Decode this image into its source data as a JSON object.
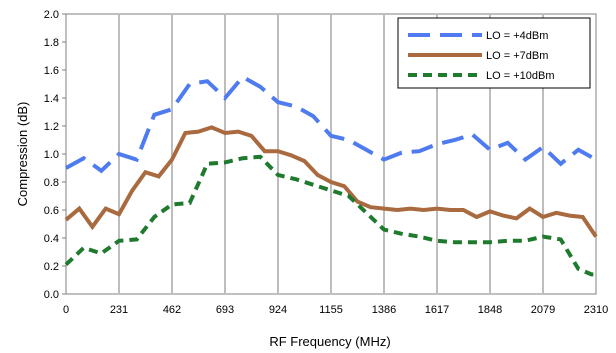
{
  "chart_data": {
    "type": "line",
    "xlabel": "RF Frequency (MHz)",
    "ylabel": "Compression (dB)",
    "xlim": [
      0,
      2310
    ],
    "ylim": [
      0,
      2.0
    ],
    "x_ticks": [
      "0",
      "231",
      "462",
      "693",
      "924",
      "1155",
      "1386",
      "1617",
      "1848",
      "2079",
      "2310"
    ],
    "y_ticks": [
      "0.0",
      "0.2",
      "0.4",
      "0.6",
      "0.8",
      "1.0",
      "1.2",
      "1.4",
      "1.6",
      "1.8",
      "2.0"
    ],
    "grid": "vertical",
    "legend_position": "top-right",
    "x": [
      0,
      77,
      154,
      231,
      308,
      385,
      462,
      539,
      616,
      693,
      770,
      847,
      924,
      1001,
      1078,
      1155,
      1232,
      1309,
      1386,
      1463,
      1540,
      1617,
      1694,
      1771,
      1848,
      1925,
      2002,
      2079,
      2156,
      2233,
      2310
    ],
    "series": [
      {
        "name": "LO = +4dBm",
        "color": "#4f7bf0",
        "dash": "long-dash",
        "values": [
          0.9,
          0.97,
          0.88,
          1.0,
          0.96,
          1.28,
          1.32,
          1.5,
          1.52,
          1.4,
          1.55,
          1.48,
          1.37,
          1.34,
          1.27,
          1.13,
          1.1,
          1.03,
          0.96,
          1.01,
          1.02,
          1.07,
          1.1,
          1.14,
          1.03,
          1.08,
          0.96,
          1.05,
          0.93,
          1.03,
          0.96
        ]
      },
      {
        "name": "LO = +7dBm",
        "color": "#a86a3e",
        "dash": "solid",
        "values": [
          0.53,
          0.61,
          0.48,
          0.61,
          0.57,
          0.74,
          0.87,
          0.84,
          0.96,
          1.15,
          1.16,
          1.19,
          1.15,
          1.16,
          1.13,
          1.02,
          1.02,
          0.99,
          0.95,
          0.85,
          0.8,
          0.77,
          0.66,
          0.62,
          0.61,
          0.6,
          0.61,
          0.6,
          0.61,
          0.6,
          0.6,
          0.55,
          0.59,
          0.56,
          0.54,
          0.61,
          0.55,
          0.58,
          0.56,
          0.55,
          0.41
        ],
        "x": [
          0,
          58,
          115,
          173,
          231,
          289,
          346,
          404,
          462,
          520,
          577,
          635,
          693,
          751,
          808,
          866,
          924,
          982,
          1039,
          1097,
          1155,
          1213,
          1270,
          1328,
          1386,
          1444,
          1501,
          1559,
          1617,
          1675,
          1732,
          1790,
          1848,
          1906,
          1963,
          2021,
          2079,
          2137,
          2194,
          2252,
          2310
        ]
      },
      {
        "name": "LO = +10dBm",
        "color": "#1f7a2e",
        "dash": "short-dash",
        "values": [
          0.21,
          0.33,
          0.29,
          0.38,
          0.39,
          0.55,
          0.64,
          0.65,
          0.93,
          0.94,
          0.97,
          0.98,
          0.85,
          0.82,
          0.78,
          0.74,
          0.7,
          0.46,
          0.43,
          0.41,
          0.38,
          0.37,
          0.37,
          0.37,
          0.38,
          0.38,
          0.41,
          0.39,
          0.18,
          0.14,
          0.14
        ],
        "x": [
          0,
          77,
          154,
          231,
          308,
          385,
          462,
          539,
          616,
          693,
          770,
          847,
          924,
          1001,
          1078,
          1155,
          1232,
          1386,
          1463,
          1540,
          1617,
          1694,
          1771,
          1848,
          1925,
          2002,
          2079,
          2156,
          2233,
          2290,
          2310
        ]
      }
    ]
  }
}
